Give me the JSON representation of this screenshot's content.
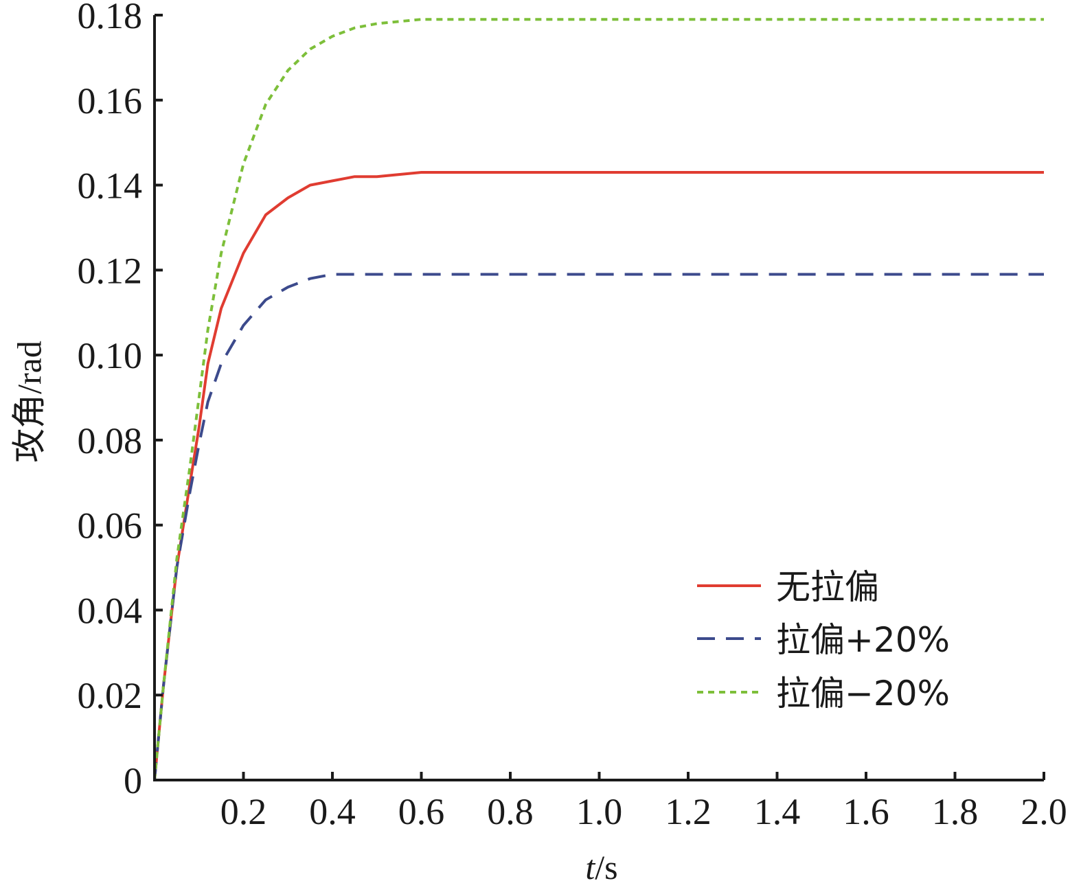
{
  "chart_data": {
    "type": "line",
    "xlabel_italic": "t",
    "xlabel_unit": "/s",
    "ylabel": "攻角/rad",
    "xlim": [
      0,
      2.0
    ],
    "ylim": [
      0,
      0.18
    ],
    "x_ticks": [
      0.2,
      0.4,
      0.6,
      0.8,
      1.0,
      1.2,
      1.4,
      1.6,
      1.8,
      2.0
    ],
    "x_tick_labels": [
      "0.2",
      "0.4",
      "0.6",
      "0.8",
      "1.0",
      "1.2",
      "1.4",
      "1.6",
      "1.8",
      "2.0"
    ],
    "y_ticks": [
      0,
      0.02,
      0.04,
      0.06,
      0.08,
      0.1,
      0.12,
      0.14,
      0.16,
      0.18
    ],
    "y_tick_labels": [
      "0",
      "0.02",
      "0.04",
      "0.06",
      "0.08",
      "0.10",
      "0.12",
      "0.14",
      "0.16",
      "0.18"
    ],
    "grid": false,
    "legend_position": "bottom-right",
    "x": [
      0,
      0.02,
      0.05,
      0.08,
      0.1,
      0.12,
      0.15,
      0.2,
      0.25,
      0.3,
      0.35,
      0.4,
      0.45,
      0.5,
      0.6,
      0.7,
      0.8,
      1.0,
      1.2,
      1.4,
      1.6,
      1.8,
      2.0
    ],
    "series": [
      {
        "name": "无拉偏",
        "color": "#e03c31",
        "dash": "solid",
        "values": [
          0,
          0.022,
          0.05,
          0.07,
          0.083,
          0.098,
          0.111,
          0.124,
          0.133,
          0.137,
          0.14,
          0.141,
          0.142,
          0.142,
          0.143,
          0.143,
          0.143,
          0.143,
          0.143,
          0.143,
          0.143,
          0.143,
          0.143
        ]
      },
      {
        "name": "拉偏+20%",
        "color": "#3c4a8c",
        "dash": "dashed",
        "values": [
          0,
          0.022,
          0.05,
          0.068,
          0.079,
          0.089,
          0.098,
          0.107,
          0.113,
          0.116,
          0.118,
          0.119,
          0.119,
          0.119,
          0.119,
          0.119,
          0.119,
          0.119,
          0.119,
          0.119,
          0.119,
          0.119,
          0.119
        ]
      },
      {
        "name": "拉偏−20%",
        "color": "#7dbf3a",
        "dash": "dotted",
        "values": [
          0,
          0.022,
          0.052,
          0.074,
          0.09,
          0.106,
          0.124,
          0.145,
          0.159,
          0.167,
          0.172,
          0.175,
          0.177,
          0.178,
          0.179,
          0.179,
          0.179,
          0.179,
          0.179,
          0.179,
          0.179,
          0.179,
          0.179
        ]
      }
    ]
  }
}
